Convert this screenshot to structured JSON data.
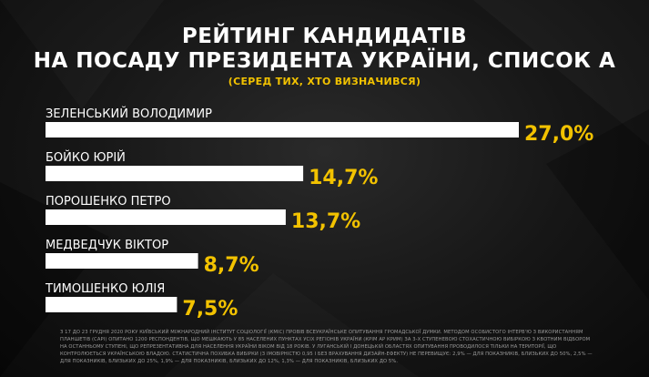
{
  "title_line1": "РЕЙТИНГ КАНДИДАТІВ",
  "title_line2": "НА ПОСАДУ ПРЕЗИДЕНТА УКРАЇНИ, СПИСОК А",
  "subtitle": "(СЕРЕД ТИХ, ХТО ВИЗНАЧИВСЯ)",
  "colors": {
    "accent": "#f2c200",
    "bar": "#ffffff",
    "background": "#161616"
  },
  "chart_data": {
    "type": "bar",
    "orientation": "horizontal",
    "categories": [
      "ЗЕЛЕНСЬКИЙ ВОЛОДИМИР",
      "БОЙКО ЮРІЙ",
      "ПОРОШЕНКО ПЕТРО",
      "МЕДВЕДЧУК ВІКТОР",
      "ТИМОШЕНКО ЮЛІЯ"
    ],
    "values": [
      27.0,
      14.7,
      13.7,
      8.7,
      7.5
    ],
    "value_labels": [
      "27,0%",
      "14,7%",
      "13,7%",
      "8,7%",
      "7,5%"
    ],
    "xlim": [
      0,
      27.0
    ],
    "grid": false,
    "legend": "none"
  },
  "footnote": "З 17 ДО 23 ГРУДНЯ 2020 РОКУ КИЇВСЬКИЙ МІЖНАРОДНИЙ ІНСТИТУТ СОЦІОЛОГІЇ (КМІС) ПРОВІВ ВСЕУКРАЇНСЬКЕ ОПИТУВАННЯ ГРОМАДСЬКОЇ ДУМКИ. МЕТОДОМ ОСОБИСТОГО ІНТЕРВ'Ю З ВИКОРИСТАННЯМ ПЛАНШЕТІВ (CAPI) ОПИТАНО 1200 РЕСПОНДЕНТІВ, ЩО МЕШКАЮТЬ У 85 НАСЕЛЕНИХ ПУНКТАХ УСІХ РЕГІОНІВ УКРАЇНИ (КРІМ АР КРИМ) ЗА 3-Х СТУПЕНЕВОЮ СТОХАСТИЧНОЮ ВИБІРКОЮ З КВОТНИМ ВІДБОРОМ НА ОСТАННЬОМУ СТУПЕНІ, ЩО РЕПРЕЗЕНТАТИВНА ДЛЯ НАСЕЛЕННЯ УКРАЇНИ ВІКОМ ВІД 18 РОКІВ. У ЛУГАНСЬКІЙ І ДОНЕЦЬКІЙ ОБЛАСТЯХ ОПИТУВАННЯ ПРОВОДИЛОСЯ ТІЛЬКИ НА ТЕРИТОРІЇ, ЩО КОНТРОЛЮЄТЬСЯ УКРАЇНСЬКОЮ ВЛАДОЮ. СТАТИСТИЧНА ПОХИБКА ВИБІРКИ (З ІМОВІРНІСТЮ 0,95 І БЕЗ ВРАХУВАННЯ ДИЗАЙН-ЕФЕКТУ) НЕ ПЕРЕВИЩУЄ: 2,9% — ДЛЯ ПОКАЗНИКІВ, БЛИЗЬКИХ ДО 50%, 2,5% — ДЛЯ ПОКАЗНИКІВ, БЛИЗЬКИХ ДО 25%, 1,9% — ДЛЯ ПОКАЗНИКІВ, БЛИЗЬКИХ ДО 12%, 1,3% — ДЛЯ ПОКАЗНИКІВ, БЛИЗЬКИХ ДО 5%."
}
